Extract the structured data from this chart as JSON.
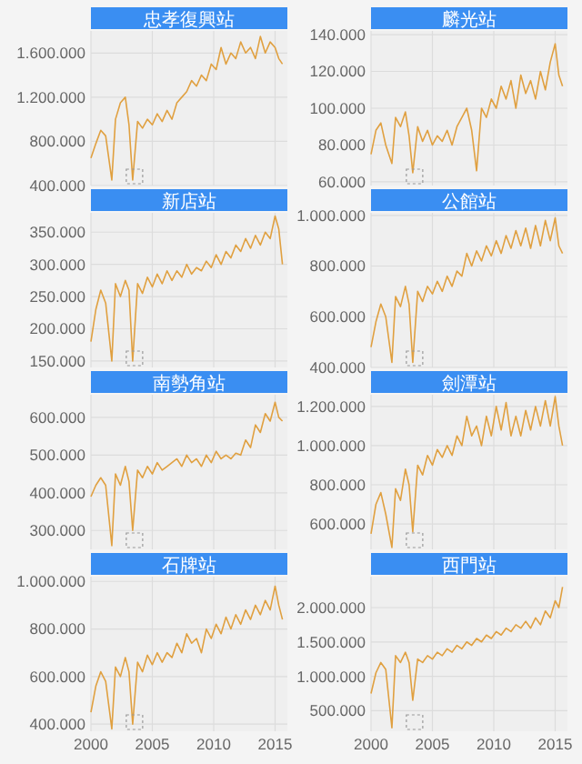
{
  "chart_data": [
    {
      "type": "line",
      "title": "忠孝復興站",
      "x": [
        2000,
        2000.4,
        2000.8,
        2001.2,
        2001.7,
        2002,
        2002.4,
        2002.8,
        2003.1,
        2003.4,
        2003.8,
        2004.2,
        2004.6,
        2005,
        2005.4,
        2005.8,
        2006.2,
        2006.6,
        2007,
        2007.4,
        2007.8,
        2008.2,
        2008.6,
        2009,
        2009.4,
        2009.8,
        2010.2,
        2010.6,
        2011,
        2011.4,
        2011.8,
        2012.2,
        2012.6,
        2013,
        2013.4,
        2013.8,
        2014.2,
        2014.6,
        2015,
        2015.3,
        2015.6
      ],
      "series": [
        {
          "color": "#e0a040",
          "values": [
            650000,
            780000,
            900000,
            850000,
            450000,
            1000000,
            1150000,
            1200000,
            950000,
            450000,
            980000,
            920000,
            1000000,
            950000,
            1050000,
            980000,
            1080000,
            1000000,
            1150000,
            1200000,
            1250000,
            1350000,
            1300000,
            1400000,
            1350000,
            1500000,
            1450000,
            1650000,
            1500000,
            1600000,
            1550000,
            1700000,
            1600000,
            1650000,
            1550000,
            1750000,
            1600000,
            1700000,
            1650000,
            1550000,
            1500000
          ]
        }
      ],
      "xlim": [
        2000,
        2016
      ],
      "xticks": [
        2000,
        2005,
        2010,
        2015
      ],
      "ylim": [
        400000,
        1800000
      ],
      "yticks": [
        {
          "value": 400000,
          "label": "400.000"
        },
        {
          "value": 800000,
          "label": "800.000"
        },
        {
          "value": 1200000,
          "label": "1.200.000"
        },
        {
          "value": 1600000,
          "label": "1.600.000"
        }
      ],
      "grid": true,
      "tick_labels": "y"
    },
    {
      "type": "line",
      "title": "麟光站",
      "x": [
        2000,
        2000.4,
        2000.8,
        2001.2,
        2001.7,
        2002,
        2002.4,
        2002.8,
        2003.1,
        2003.4,
        2003.8,
        2004.2,
        2004.6,
        2005,
        2005.4,
        2005.8,
        2006.2,
        2006.6,
        2007,
        2007.4,
        2007.8,
        2008.2,
        2008.6,
        2009,
        2009.4,
        2009.8,
        2010.2,
        2010.6,
        2011,
        2011.4,
        2011.8,
        2012.2,
        2012.6,
        2013,
        2013.4,
        2013.8,
        2014.2,
        2014.6,
        2015,
        2015.3,
        2015.6
      ],
      "series": [
        {
          "color": "#e0a040",
          "values": [
            75000,
            88000,
            92000,
            80000,
            70000,
            95000,
            90000,
            98000,
            85000,
            65000,
            90000,
            82000,
            88000,
            80000,
            85000,
            82000,
            88000,
            80000,
            90000,
            95000,
            100000,
            88000,
            66000,
            100000,
            95000,
            105000,
            100000,
            112000,
            105000,
            115000,
            100000,
            118000,
            108000,
            115000,
            105000,
            120000,
            110000,
            125000,
            135000,
            118000,
            112000
          ]
        }
      ],
      "xlim": [
        2000,
        2016
      ],
      "xticks": [
        2000,
        2005,
        2010,
        2015
      ],
      "ylim": [
        58000,
        142000
      ],
      "yticks": [
        {
          "value": 60000,
          "label": "60.000"
        },
        {
          "value": 80000,
          "label": "80.000"
        },
        {
          "value": 100000,
          "label": "100.000"
        },
        {
          "value": 120000,
          "label": "120.000"
        },
        {
          "value": 140000,
          "label": "140.000"
        }
      ],
      "grid": true,
      "tick_labels": "y"
    },
    {
      "type": "line",
      "title": "新店站",
      "x": [
        2000,
        2000.4,
        2000.8,
        2001.2,
        2001.7,
        2002,
        2002.4,
        2002.8,
        2003.1,
        2003.4,
        2003.8,
        2004.2,
        2004.6,
        2005,
        2005.4,
        2005.8,
        2006.2,
        2006.6,
        2007,
        2007.4,
        2007.8,
        2008.2,
        2008.6,
        2009,
        2009.4,
        2009.8,
        2010.2,
        2010.6,
        2011,
        2011.4,
        2011.8,
        2012.2,
        2012.6,
        2013,
        2013.4,
        2013.8,
        2014.2,
        2014.6,
        2015,
        2015.3,
        2015.6
      ],
      "series": [
        {
          "color": "#e0a040",
          "values": [
            180000,
            230000,
            260000,
            240000,
            150000,
            270000,
            250000,
            275000,
            260000,
            150000,
            270000,
            255000,
            280000,
            265000,
            285000,
            270000,
            290000,
            275000,
            290000,
            280000,
            300000,
            285000,
            295000,
            290000,
            305000,
            295000,
            315000,
            300000,
            320000,
            310000,
            330000,
            320000,
            340000,
            325000,
            345000,
            330000,
            350000,
            340000,
            375000,
            355000,
            300000
          ]
        }
      ],
      "xlim": [
        2000,
        2016
      ],
      "xticks": [
        2000,
        2005,
        2010,
        2015
      ],
      "ylim": [
        140000,
        380000
      ],
      "yticks": [
        {
          "value": 150000,
          "label": "150.000"
        },
        {
          "value": 200000,
          "label": "200.000"
        },
        {
          "value": 250000,
          "label": "250.000"
        },
        {
          "value": 300000,
          "label": "300.000"
        },
        {
          "value": 350000,
          "label": "350.000"
        }
      ],
      "grid": true,
      "tick_labels": "y"
    },
    {
      "type": "line",
      "title": "公館站",
      "x": [
        2000,
        2000.4,
        2000.8,
        2001.2,
        2001.7,
        2002,
        2002.4,
        2002.8,
        2003.1,
        2003.4,
        2003.8,
        2004.2,
        2004.6,
        2005,
        2005.4,
        2005.8,
        2006.2,
        2006.6,
        2007,
        2007.4,
        2007.8,
        2008.2,
        2008.6,
        2009,
        2009.4,
        2009.8,
        2010.2,
        2010.6,
        2011,
        2011.4,
        2011.8,
        2012.2,
        2012.6,
        2013,
        2013.4,
        2013.8,
        2014.2,
        2014.6,
        2015,
        2015.3,
        2015.6
      ],
      "series": [
        {
          "color": "#e0a040",
          "values": [
            480000,
            580000,
            650000,
            600000,
            420000,
            680000,
            640000,
            720000,
            650000,
            420000,
            700000,
            660000,
            720000,
            690000,
            740000,
            700000,
            760000,
            720000,
            780000,
            760000,
            850000,
            800000,
            860000,
            820000,
            880000,
            840000,
            900000,
            850000,
            920000,
            870000,
            940000,
            880000,
            950000,
            870000,
            960000,
            880000,
            980000,
            900000,
            990000,
            880000,
            850000
          ]
        }
      ],
      "xlim": [
        2000,
        2016
      ],
      "xticks": [
        2000,
        2005,
        2010,
        2015
      ],
      "ylim": [
        400000,
        1010000
      ],
      "yticks": [
        {
          "value": 400000,
          "label": "400.000"
        },
        {
          "value": 600000,
          "label": "600.000"
        },
        {
          "value": 800000,
          "label": "800.000"
        },
        {
          "value": 1000000,
          "label": "1.000.000"
        }
      ],
      "grid": true,
      "tick_labels": "y"
    },
    {
      "type": "line",
      "title": "南勢角站",
      "x": [
        2000,
        2000.4,
        2000.8,
        2001.2,
        2001.7,
        2002,
        2002.4,
        2002.8,
        2003.1,
        2003.4,
        2003.8,
        2004.2,
        2004.6,
        2005,
        2005.4,
        2005.8,
        2006.2,
        2006.6,
        2007,
        2007.4,
        2007.8,
        2008.2,
        2008.6,
        2009,
        2009.4,
        2009.8,
        2010.2,
        2010.6,
        2011,
        2011.4,
        2011.8,
        2012.2,
        2012.6,
        2013,
        2013.4,
        2013.8,
        2014.2,
        2014.6,
        2015,
        2015.3,
        2015.6
      ],
      "series": [
        {
          "color": "#e0a040",
          "values": [
            390000,
            420000,
            440000,
            420000,
            260000,
            450000,
            420000,
            470000,
            430000,
            300000,
            460000,
            440000,
            470000,
            450000,
            480000,
            460000,
            470000,
            480000,
            490000,
            470000,
            500000,
            480000,
            490000,
            470000,
            500000,
            480000,
            510000,
            490000,
            500000,
            490000,
            505000,
            500000,
            540000,
            520000,
            580000,
            560000,
            610000,
            590000,
            640000,
            600000,
            590000
          ]
        }
      ],
      "xlim": [
        2000,
        2016
      ],
      "xticks": [
        2000,
        2005,
        2010,
        2015
      ],
      "ylim": [
        250000,
        660000
      ],
      "yticks": [
        {
          "value": 300000,
          "label": "300.000"
        },
        {
          "value": 400000,
          "label": "400.000"
        },
        {
          "value": 500000,
          "label": "500.000"
        },
        {
          "value": 600000,
          "label": "600.000"
        }
      ],
      "grid": true,
      "tick_labels": "y"
    },
    {
      "type": "line",
      "title": "劍潭站",
      "x": [
        2000,
        2000.4,
        2000.8,
        2001.2,
        2001.7,
        2002,
        2002.4,
        2002.8,
        2003.1,
        2003.4,
        2003.8,
        2004.2,
        2004.6,
        2005,
        2005.4,
        2005.8,
        2006.2,
        2006.6,
        2007,
        2007.4,
        2007.8,
        2008.2,
        2008.6,
        2009,
        2009.4,
        2009.8,
        2010.2,
        2010.6,
        2011,
        2011.4,
        2011.8,
        2012.2,
        2012.6,
        2013,
        2013.4,
        2013.8,
        2014.2,
        2014.6,
        2015,
        2015.3,
        2015.6
      ],
      "series": [
        {
          "color": "#e0a040",
          "values": [
            550000,
            700000,
            760000,
            650000,
            480000,
            780000,
            720000,
            880000,
            800000,
            560000,
            900000,
            850000,
            950000,
            900000,
            980000,
            940000,
            1000000,
            950000,
            1050000,
            1000000,
            1150000,
            1050000,
            1100000,
            1000000,
            1150000,
            1050000,
            1200000,
            1080000,
            1220000,
            1050000,
            1150000,
            1050000,
            1180000,
            1080000,
            1200000,
            1100000,
            1230000,
            1100000,
            1250000,
            1100000,
            1000000
          ]
        }
      ],
      "xlim": [
        2000,
        2016
      ],
      "xticks": [
        2000,
        2005,
        2010,
        2015
      ],
      "ylim": [
        470000,
        1260000
      ],
      "yticks": [
        {
          "value": 600000,
          "label": "600.000"
        },
        {
          "value": 800000,
          "label": "800.000"
        },
        {
          "value": 1000000,
          "label": "1.000.000"
        },
        {
          "value": 1200000,
          "label": "1.200.000"
        }
      ],
      "grid": true,
      "tick_labels": "y"
    },
    {
      "type": "line",
      "title": "石牌站",
      "x": [
        2000,
        2000.4,
        2000.8,
        2001.2,
        2001.7,
        2002,
        2002.4,
        2002.8,
        2003.1,
        2003.4,
        2003.8,
        2004.2,
        2004.6,
        2005,
        2005.4,
        2005.8,
        2006.2,
        2006.6,
        2007,
        2007.4,
        2007.8,
        2008.2,
        2008.6,
        2009,
        2009.4,
        2009.8,
        2010.2,
        2010.6,
        2011,
        2011.4,
        2011.8,
        2012.2,
        2012.6,
        2013,
        2013.4,
        2013.8,
        2014.2,
        2014.6,
        2015,
        2015.3,
        2015.6
      ],
      "series": [
        {
          "color": "#e0a040",
          "values": [
            450000,
            560000,
            620000,
            580000,
            380000,
            640000,
            600000,
            680000,
            620000,
            400000,
            660000,
            620000,
            690000,
            650000,
            700000,
            660000,
            700000,
            680000,
            740000,
            700000,
            780000,
            740000,
            760000,
            700000,
            800000,
            760000,
            820000,
            780000,
            850000,
            800000,
            860000,
            820000,
            880000,
            840000,
            900000,
            860000,
            920000,
            880000,
            980000,
            900000,
            840000
          ]
        }
      ],
      "xlim": [
        2000,
        2016
      ],
      "xticks": [
        2000,
        2005,
        2010,
        2015
      ],
      "ylim": [
        370000,
        1020000
      ],
      "yticks": [
        {
          "value": 400000,
          "label": "400.000"
        },
        {
          "value": 600000,
          "label": "600.000"
        },
        {
          "value": 800000,
          "label": "800.000"
        },
        {
          "value": 1000000,
          "label": "1.000.000"
        }
      ],
      "grid": true
    },
    {
      "type": "line",
      "title": "西門站",
      "x": [
        2000,
        2000.4,
        2000.8,
        2001.2,
        2001.7,
        2002,
        2002.4,
        2002.8,
        2003.1,
        2003.4,
        2003.8,
        2004.2,
        2004.6,
        2005,
        2005.4,
        2005.8,
        2006.2,
        2006.6,
        2007,
        2007.4,
        2007.8,
        2008.2,
        2008.6,
        2009,
        2009.4,
        2009.8,
        2010.2,
        2010.6,
        2011,
        2011.4,
        2011.8,
        2012.2,
        2012.6,
        2013,
        2013.4,
        2013.8,
        2014.2,
        2014.6,
        2015,
        2015.3,
        2015.6
      ],
      "series": [
        {
          "color": "#e0a040",
          "values": [
            750000,
            1050000,
            1200000,
            1100000,
            250000,
            1300000,
            1200000,
            1350000,
            1200000,
            650000,
            1250000,
            1200000,
            1300000,
            1250000,
            1350000,
            1300000,
            1400000,
            1350000,
            1450000,
            1400000,
            1500000,
            1450000,
            1550000,
            1500000,
            1600000,
            1550000,
            1650000,
            1600000,
            1700000,
            1650000,
            1750000,
            1700000,
            1800000,
            1700000,
            1850000,
            1750000,
            1950000,
            1850000,
            2100000,
            2000000,
            2300000
          ]
        }
      ],
      "xlim": [
        2000,
        2016
      ],
      "xticks": [
        2000,
        2005,
        2010,
        2015
      ],
      "ylim": [
        200000,
        2450000
      ],
      "yticks": [
        {
          "value": 500000,
          "label": "500.000"
        },
        {
          "value": 1000000,
          "label": "1.000.000"
        },
        {
          "value": 1500000,
          "label": "1.500.000"
        },
        {
          "value": 2000000,
          "label": "2.000.000"
        }
      ],
      "grid": true
    }
  ]
}
